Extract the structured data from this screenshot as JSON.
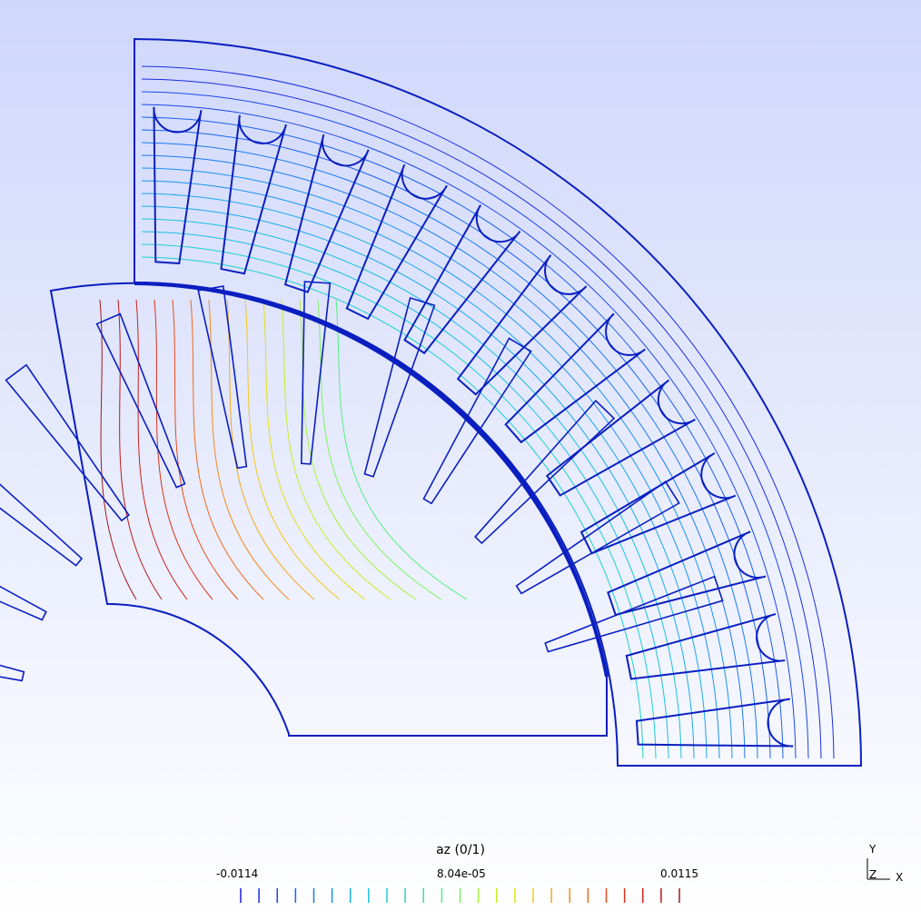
{
  "legend": {
    "title": "az (0/1)",
    "min_label": "-0.0114",
    "mid_label": "8.04e-05",
    "max_label": "0.0115",
    "min": -0.0114,
    "max": 0.0115,
    "tick_count": 25,
    "colors": [
      "#1a1adb",
      "#1a2fe0",
      "#1a47e6",
      "#1a60ec",
      "#1a79ef",
      "#1a92ef",
      "#1aa9ea",
      "#1abfe0",
      "#1ad1cf",
      "#1adfba",
      "#2ae8a0",
      "#52ef80",
      "#7cf25e",
      "#a5f23e",
      "#c9ec25",
      "#e3df1a",
      "#f2c81a",
      "#f5aa1a",
      "#f48a1a",
      "#ef6a1a",
      "#e64b1a",
      "#db321a",
      "#cc211a",
      "#b8191a",
      "#a3181a"
    ]
  },
  "axes_triad": {
    "y": "Y",
    "z": "Z",
    "x": "X"
  },
  "colors": {
    "background_top": "#cfd7fb",
    "background_bottom": "#ffffff",
    "geometry": "#0b1fc0"
  }
}
